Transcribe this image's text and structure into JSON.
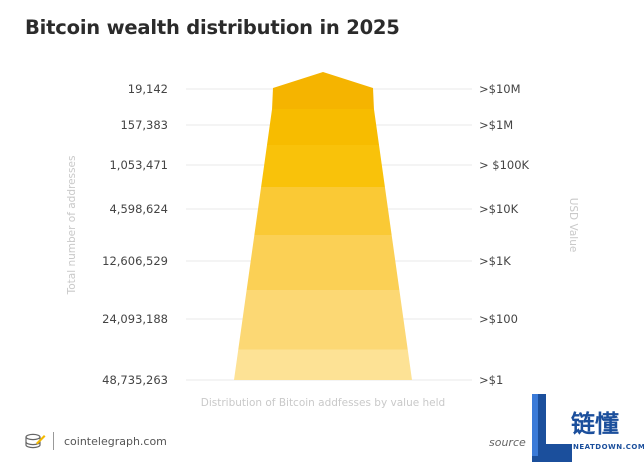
{
  "chart_data": {
    "type": "pyramid",
    "title": "Bitcoin wealth distribution in 2025",
    "xlabel": "Distribution of Bitcoin addfesses by value held",
    "ylabel_left": "Total number of addresses",
    "ylabel_right": "USD Value",
    "tiers": [
      {
        "addresses": "19,142",
        "usd_value": ">$10M",
        "color": "#f5b400"
      },
      {
        "addresses": "157,383",
        "usd_value": ">$1M",
        "color": "#f7bc00"
      },
      {
        "addresses": "1,053,471",
        "usd_value": "> $100K",
        "color": "#f9c20a"
      },
      {
        "addresses": "4,598,624",
        "usd_value": ">$10K",
        "color": "#fac935"
      },
      {
        "addresses": "12,606,529",
        "usd_value": ">$1K",
        "color": "#fbd055"
      },
      {
        "addresses": "24,093,188",
        "usd_value": ">$100",
        "color": "#fcd874"
      },
      {
        "addresses": "48,735,263",
        "usd_value": ">$1",
        "color": "#fde295"
      }
    ]
  },
  "footer": {
    "brand": "cointelegraph.com",
    "source": "source"
  },
  "watermark": {
    "text": "链懂",
    "subtext": "NEATDOWN.COM"
  }
}
